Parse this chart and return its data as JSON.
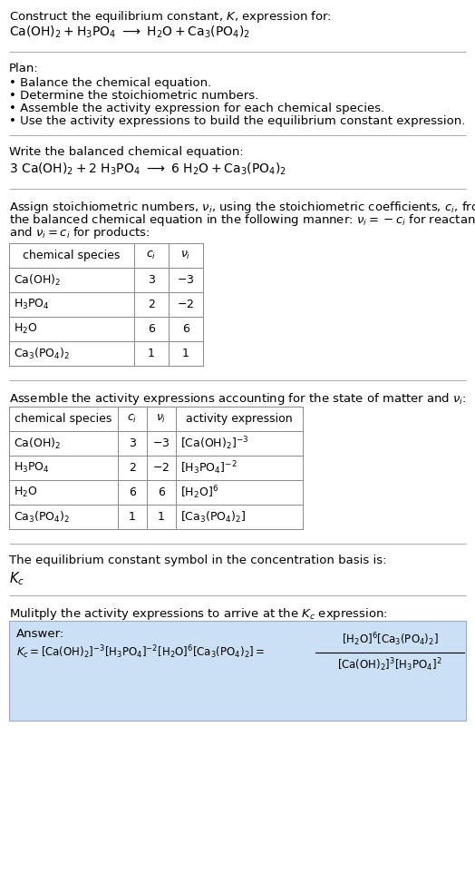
{
  "bg_color": "#ffffff",
  "text_color": "#000000",
  "answer_bg": "#cce0f5",
  "figsize": [
    5.24,
    9.63
  ],
  "dpi": 100,
  "title_line1": "Construct the equilibrium constant, $K$, expression for:",
  "title_line2": "$\\mathrm{Ca(OH)_2 + H_3PO_4 \\ \\longrightarrow \\ H_2O + Ca_3(PO_4)_2}$",
  "plan_header": "Plan:",
  "plan_bullets": [
    "• Balance the chemical equation.",
    "• Determine the stoichiometric numbers.",
    "• Assemble the activity expression for each chemical species.",
    "• Use the activity expressions to build the equilibrium constant expression."
  ],
  "balanced_header": "Write the balanced chemical equation:",
  "balanced_eq": "$3\\ \\mathrm{Ca(OH)_2 + 2\\ H_3PO_4 \\ \\longrightarrow \\ 6\\ H_2O + Ca_3(PO_4)_2}$",
  "stoich_header": "Assign stoichiometric numbers, $\\nu_i$, using the stoichiometric coefficients, $c_i$, from\nthe balanced chemical equation in the following manner: $\\nu_i = -c_i$ for reactants\nand $\\nu_i = c_i$ for products:",
  "table1_headers": [
    "chemical species",
    "$c_i$",
    "$\\nu_i$"
  ],
  "table1_rows": [
    [
      "$\\mathrm{Ca(OH)_2}$",
      "3",
      "$-3$"
    ],
    [
      "$\\mathrm{H_3PO_4}$",
      "2",
      "$-2$"
    ],
    [
      "$\\mathrm{H_2O}$",
      "6",
      "6"
    ],
    [
      "$\\mathrm{Ca_3(PO_4)_2}$",
      "1",
      "1"
    ]
  ],
  "activity_header": "Assemble the activity expressions accounting for the state of matter and $\\nu_i$:",
  "table2_headers": [
    "chemical species",
    "$c_i$",
    "$\\nu_i$",
    "activity expression"
  ],
  "table2_rows": [
    [
      "$\\mathrm{Ca(OH)_2}$",
      "3",
      "$-3$",
      "$[\\mathrm{Ca(OH)_2}]^{-3}$"
    ],
    [
      "$\\mathrm{H_3PO_4}$",
      "2",
      "$-2$",
      "$[\\mathrm{H_3PO_4}]^{-2}$"
    ],
    [
      "$\\mathrm{H_2O}$",
      "6",
      "6",
      "$[\\mathrm{H_2O}]^{6}$"
    ],
    [
      "$\\mathrm{Ca_3(PO_4)_2}$",
      "1",
      "1",
      "$[\\mathrm{Ca_3(PO_4)_2}]$"
    ]
  ],
  "kc_header": "The equilibrium constant symbol in the concentration basis is:",
  "kc_symbol": "$K_c$",
  "multiply_header": "Mulitply the activity expressions to arrive at the $K_c$ expression:",
  "answer_label": "Answer:",
  "font_size": 9.5,
  "line_color": "#aaaaaa"
}
